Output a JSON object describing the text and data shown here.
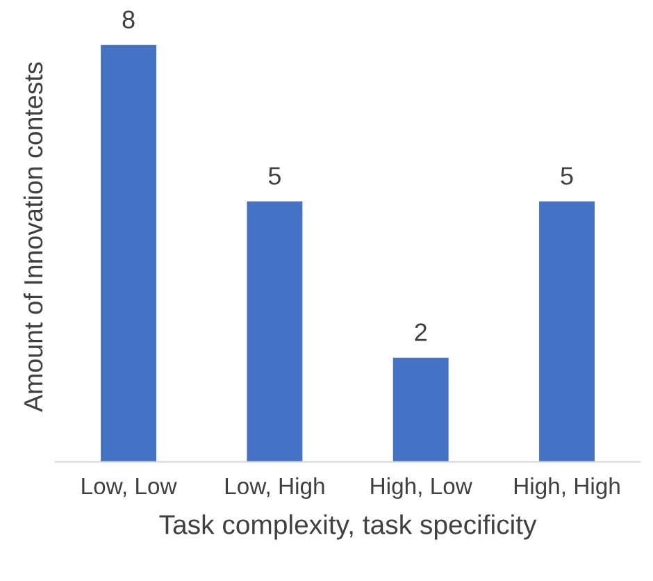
{
  "chart_data": {
    "type": "bar",
    "xlabel": "Task complexity, task specificity",
    "ylabel": "Amount of Innovation contests",
    "categories": [
      "Low, Low",
      "Low, High",
      "High, Low",
      "High, High"
    ],
    "values": [
      8,
      5,
      2,
      5
    ],
    "color": "#4472c4",
    "data_labels": true,
    "grid": false
  }
}
